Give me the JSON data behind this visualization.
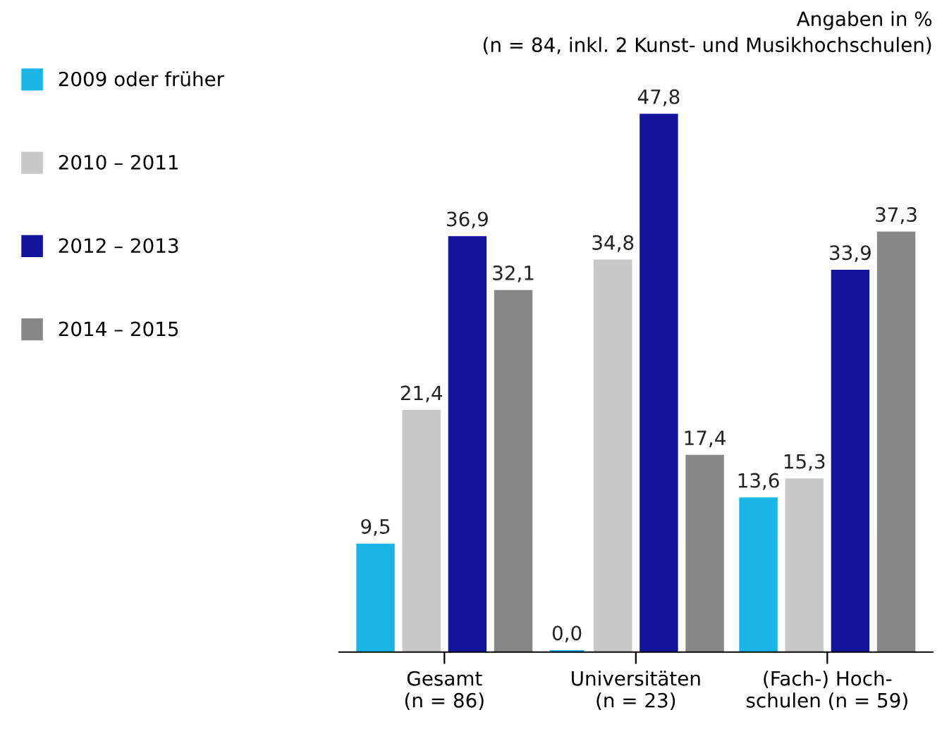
{
  "chart_data": {
    "type": "bar",
    "title": "Angaben in %",
    "subtitle": "(n = 84, inkl. 2 Kunst- und Musikhochschulen)",
    "categories": [
      "Gesamt\n(n = 86)",
      "Universitäten\n(n = 23)",
      "(Fach-) Hoch-\nschulen (n = 59)"
    ],
    "series": [
      {
        "name": "2009 oder früher",
        "color": "#1ab4e6",
        "values": [
          9.5,
          0.0,
          13.6
        ],
        "value_labels": [
          "9,5",
          "0,0",
          "13,6"
        ]
      },
      {
        "name": "2010 – 2011",
        "color": "#c8c8c8",
        "values": [
          21.4,
          34.8,
          15.3
        ],
        "value_labels": [
          "21,4",
          "34,8",
          "15,3"
        ]
      },
      {
        "name": "2012 – 2013",
        "color": "#14149b",
        "values": [
          36.9,
          47.8,
          33.9
        ],
        "value_labels": [
          "36,9",
          "47,8",
          "33,9"
        ]
      },
      {
        "name": "2014 – 2015",
        "color": "#878787",
        "values": [
          32.1,
          17.4,
          37.3
        ],
        "value_labels": [
          "32,1",
          "17,4",
          "37,3"
        ]
      }
    ],
    "legend": "left",
    "grid": false
  }
}
